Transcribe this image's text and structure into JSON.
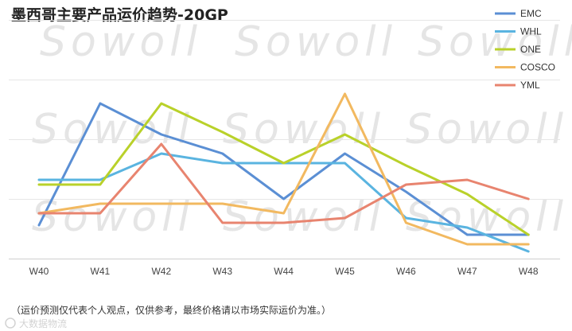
{
  "chart_data": {
    "type": "line",
    "title": "墨西哥主要产品运价趋势-20GP",
    "categories": [
      "W40",
      "W41",
      "W42",
      "W43",
      "W44",
      "W45",
      "W46",
      "W47",
      "W48"
    ],
    "ylim": [
      0,
      100
    ],
    "grid": true,
    "legend_position": "top-right",
    "series": [
      {
        "name": "EMC",
        "color": "#5b8fd4",
        "values": [
          14,
          65,
          52,
          44,
          25,
          44,
          28,
          10,
          10
        ]
      },
      {
        "name": "WHL",
        "color": "#5ab4e0",
        "values": [
          33,
          33,
          44,
          40,
          40,
          40,
          17,
          13,
          3
        ]
      },
      {
        "name": "ONE",
        "color": "#b9d12a",
        "values": [
          31,
          31,
          65,
          53,
          40,
          52,
          39,
          27,
          10
        ]
      },
      {
        "name": "COSCO",
        "color": "#f2b960",
        "values": [
          19,
          23,
          23,
          23,
          19,
          69,
          15,
          6,
          6
        ]
      },
      {
        "name": "YML",
        "color": "#e8846f",
        "values": [
          19,
          19,
          48,
          15,
          15,
          17,
          31,
          33,
          25
        ]
      }
    ]
  },
  "footnote": "（运价预测仅代表个人观点，仅供参考，最终价格请以市场实际运价为准。）",
  "watermark": "Sowoll",
  "corner_mark": "大数据物流"
}
